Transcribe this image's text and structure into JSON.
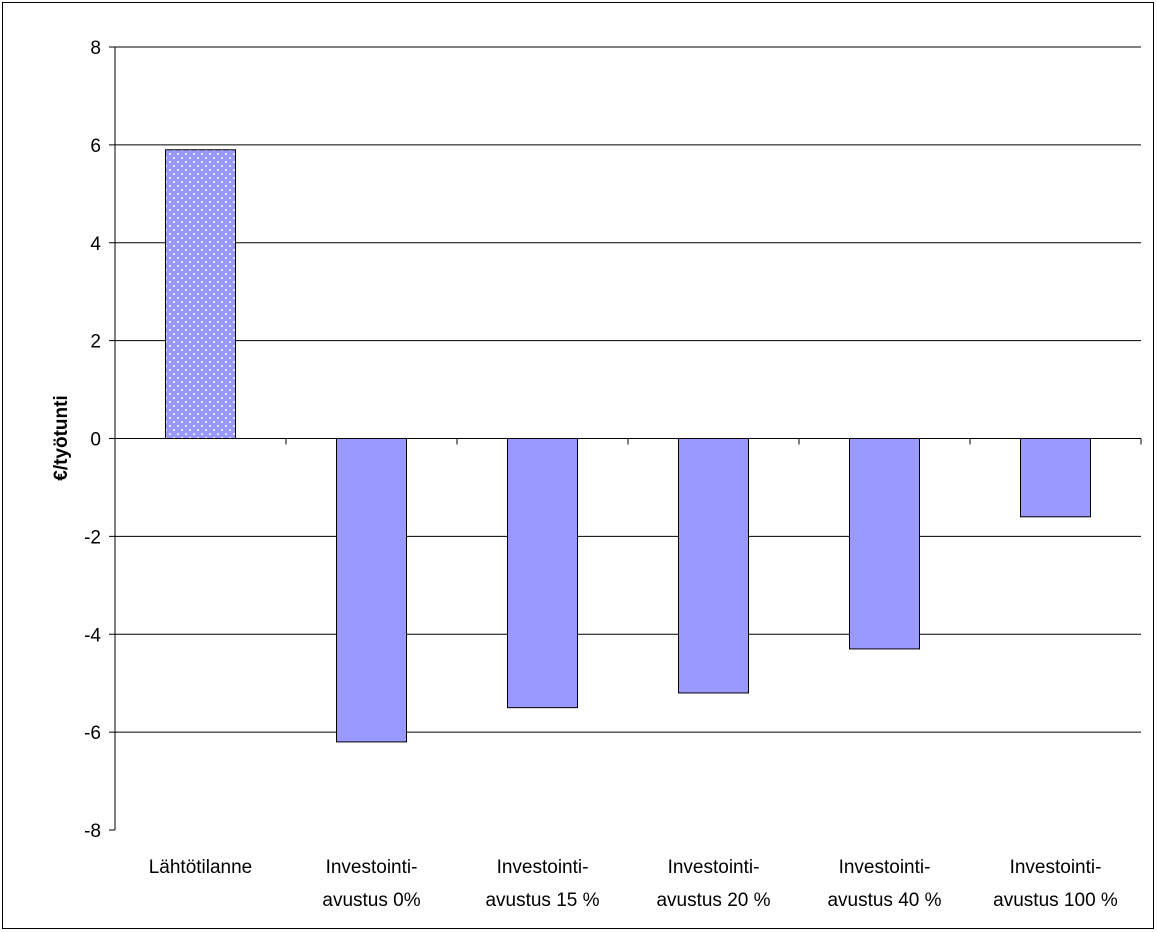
{
  "chart_data": {
    "type": "bar",
    "title": "",
    "xlabel": "",
    "ylabel": "€/työtunti",
    "categories": [
      [
        "Lähtötilanne"
      ],
      [
        "Investointi-",
        "avustus 0%"
      ],
      [
        "Investointi-",
        "avustus 15 %"
      ],
      [
        "Investointi-",
        "avustus 20 %"
      ],
      [
        "Investointi-",
        "avustus 40 %"
      ],
      [
        "Investointi-",
        "avustus 100 %"
      ]
    ],
    "values": [
      5.9,
      -6.2,
      -5.5,
      -5.2,
      -4.3,
      -1.6
    ],
    "ylim": [
      -8,
      8
    ],
    "yticks": [
      8,
      6,
      4,
      2,
      0,
      -2,
      -4,
      -6,
      -8
    ],
    "grid": true,
    "colors": {
      "bar_fill": "#9999ff",
      "bar_stroke": "#000000",
      "first_bar_pattern_fill": "#9999ff",
      "first_bar_pattern_dots": "#ffffff",
      "grid": "#000000",
      "axis": "#000000"
    }
  }
}
